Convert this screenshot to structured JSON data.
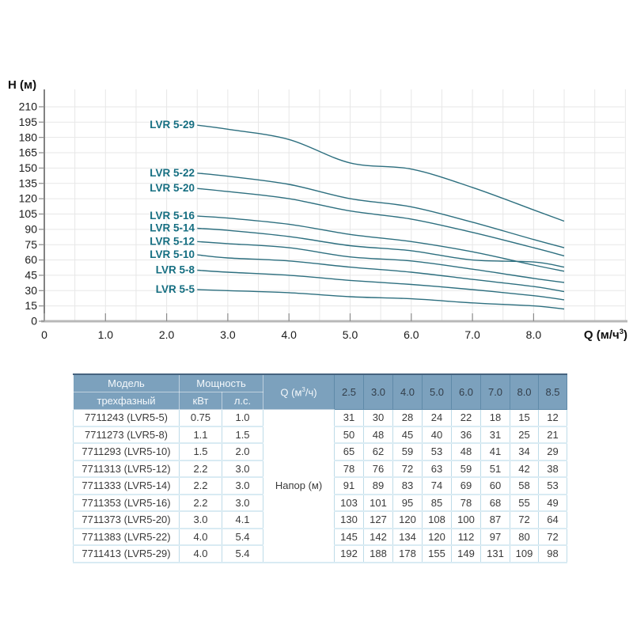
{
  "chart_data": {
    "type": "line",
    "title": "",
    "ylabel": "H (м)",
    "xlabel": "Q (м/ч³)",
    "xlabel_parts": {
      "prefix": "Q (м/ч",
      "sup": "3",
      "suffix": ")"
    },
    "x": [
      2.5,
      3.0,
      4.0,
      5.0,
      6.0,
      7.0,
      8.0,
      8.5
    ],
    "series": [
      {
        "name": "LVR 5-29",
        "values": [
          192,
          188,
          178,
          155,
          149,
          131,
          109,
          98
        ]
      },
      {
        "name": "LVR 5-22",
        "values": [
          145,
          142,
          134,
          120,
          112,
          97,
          80,
          72
        ]
      },
      {
        "name": "LVR 5-20",
        "values": [
          130,
          127,
          120,
          108,
          100,
          87,
          72,
          64
        ]
      },
      {
        "name": "LVR 5-16",
        "values": [
          103,
          101,
          95,
          85,
          78,
          68,
          55,
          49
        ]
      },
      {
        "name": "LVR 5-14",
        "values": [
          91,
          89,
          83,
          74,
          69,
          60,
          58,
          53
        ]
      },
      {
        "name": "LVR 5-12",
        "values": [
          78,
          76,
          72,
          63,
          59,
          51,
          42,
          38
        ]
      },
      {
        "name": "LVR 5-10",
        "values": [
          65,
          62,
          59,
          53,
          48,
          41,
          34,
          29
        ]
      },
      {
        "name": "LVR 5-8",
        "values": [
          50,
          48,
          45,
          40,
          36,
          31,
          25,
          21
        ]
      },
      {
        "name": "LVR 5-5",
        "values": [
          31,
          30,
          28,
          24,
          22,
          18,
          15,
          12
        ]
      }
    ],
    "y_ticks": [
      0,
      15,
      30,
      45,
      60,
      75,
      90,
      105,
      120,
      135,
      150,
      165,
      180,
      195,
      210
    ],
    "x_ticks": [
      0,
      1,
      2,
      3,
      4,
      5,
      6,
      7,
      8
    ],
    "x_tick_labels": [
      "0",
      "1.0",
      "2.0",
      "3.0",
      "4.0",
      "5.0",
      "6.0",
      "7.0",
      "8.0"
    ],
    "xlim": [
      0,
      9.5
    ],
    "ylim": [
      0,
      225
    ],
    "grid": true,
    "legend_position": "inline-labels-left-of-curves",
    "colors": {
      "curve": "#2d6f7f",
      "curve_label": "#156e81",
      "grid": "#e7e7e7",
      "x_axis": "#b8b8b8",
      "y_axis": "#4d4d4d",
      "tick": "#8c8c8c",
      "tick_text": "#1b1b1b",
      "axis_title_text": "#111111"
    }
  },
  "table": {
    "header": {
      "model": "Модель",
      "model_sub": "трехфазный",
      "power": "Мощность",
      "kw": "кВт",
      "hp": "л.с.",
      "q_prefix": "Q (м",
      "q_sup": "3",
      "q_suffix": "/ч)",
      "q_values": [
        "2.5",
        "3.0",
        "4.0",
        "5.0",
        "6.0",
        "7.0",
        "8.0",
        "8.5"
      ]
    },
    "napor_label": "Напор (м)",
    "rows": [
      {
        "model": "7711243 (LVR5-5)",
        "kw": "0.75",
        "hp": "1.0",
        "values": [
          31,
          30,
          28,
          24,
          22,
          18,
          15,
          12
        ]
      },
      {
        "model": "7711273 (LVR5-8)",
        "kw": "1.1",
        "hp": "1.5",
        "values": [
          50,
          48,
          45,
          40,
          36,
          31,
          25,
          21
        ]
      },
      {
        "model": "7711293 (LVR5-10)",
        "kw": "1.5",
        "hp": "2.0",
        "values": [
          65,
          62,
          59,
          53,
          48,
          41,
          34,
          29
        ]
      },
      {
        "model": "7711313 (LVR5-12)",
        "kw": "2.2",
        "hp": "3.0",
        "values": [
          78,
          76,
          72,
          63,
          59,
          51,
          42,
          38
        ]
      },
      {
        "model": "7711333 (LVR5-14)",
        "kw": "2.2",
        "hp": "3.0",
        "values": [
          91,
          89,
          83,
          74,
          69,
          60,
          58,
          53
        ]
      },
      {
        "model": "7711353 (LVR5-16)",
        "kw": "2.2",
        "hp": "3.0",
        "values": [
          103,
          101,
          95,
          85,
          78,
          68,
          55,
          49
        ]
      },
      {
        "model": "7711373 (LVR5-20)",
        "kw": "3.0",
        "hp": "4.1",
        "values": [
          130,
          127,
          120,
          108,
          100,
          87,
          72,
          64
        ]
      },
      {
        "model": "7711383 (LVR5-22)",
        "kw": "4.0",
        "hp": "5.4",
        "values": [
          145,
          142,
          134,
          120,
          112,
          97,
          80,
          72
        ]
      },
      {
        "model": "7711413 (LVR5-29)",
        "kw": "4.0",
        "hp": "5.4",
        "values": [
          192,
          188,
          178,
          155,
          149,
          131,
          109,
          98
        ]
      }
    ],
    "colors": {
      "header_bg": "#7ca1bd",
      "header_text": "#f4f8fb",
      "header_value_text": "#333e4a",
      "header_separator": "#5f8aa9",
      "top_border": "#46637f",
      "grid": "#bedbe8",
      "row_line": "#d9ebf3"
    }
  }
}
